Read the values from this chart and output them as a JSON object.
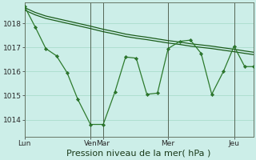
{
  "background_color": "#cceee8",
  "grid_color": "#aaddcc",
  "line_color_dark": "#1a5c1a",
  "line_color_med": "#2d7a2d",
  "xlabel": "Pression niveau de la mer( hPa )",
  "xlabel_fontsize": 8,
  "ylim": [
    1013.3,
    1018.85
  ],
  "yticks": [
    1014,
    1015,
    1016,
    1017,
    1018
  ],
  "tick_fontsize": 6.5,
  "day_labels": [
    "Lun",
    "Ven",
    "Mar",
    "Mer",
    "Jeu"
  ],
  "day_x": [
    0.0,
    0.62,
    0.74,
    1.35,
    1.97
  ],
  "vline_x": [
    0.0,
    0.62,
    0.74,
    1.35,
    1.97
  ],
  "xlim": [
    0.0,
    2.15
  ],
  "trend1_x": [
    0.0,
    0.1,
    0.2,
    0.3,
    0.4,
    0.5,
    0.62,
    0.74,
    0.85,
    0.95,
    1.05,
    1.15,
    1.25,
    1.35,
    1.46,
    1.56,
    1.66,
    1.76,
    1.87,
    1.97,
    2.07,
    2.15
  ],
  "trend1_y": [
    1018.55,
    1018.35,
    1018.2,
    1018.1,
    1018.0,
    1017.9,
    1017.78,
    1017.65,
    1017.55,
    1017.45,
    1017.38,
    1017.32,
    1017.25,
    1017.18,
    1017.12,
    1017.05,
    1017.0,
    1016.95,
    1016.88,
    1016.82,
    1016.75,
    1016.7
  ],
  "trend2_x": [
    0.0,
    0.1,
    0.2,
    0.3,
    0.4,
    0.5,
    0.62,
    0.74,
    0.85,
    0.95,
    1.05,
    1.15,
    1.25,
    1.35,
    1.46,
    1.56,
    1.66,
    1.76,
    1.87,
    1.97,
    2.07,
    2.15
  ],
  "trend2_y": [
    1018.65,
    1018.45,
    1018.3,
    1018.2,
    1018.1,
    1018.0,
    1017.88,
    1017.75,
    1017.65,
    1017.55,
    1017.48,
    1017.42,
    1017.35,
    1017.28,
    1017.22,
    1017.15,
    1017.1,
    1017.05,
    1016.98,
    1016.92,
    1016.85,
    1016.8
  ],
  "main_x": [
    0.0,
    0.1,
    0.2,
    0.3,
    0.4,
    0.5,
    0.62,
    0.74,
    0.85,
    0.95,
    1.05,
    1.15,
    1.25,
    1.35,
    1.46,
    1.56,
    1.66,
    1.76,
    1.87,
    1.97,
    2.07,
    2.15
  ],
  "main_y": [
    1018.7,
    1017.85,
    1016.95,
    1016.65,
    1015.95,
    1014.85,
    1013.8,
    1013.8,
    1015.15,
    1016.6,
    1016.55,
    1015.05,
    1015.1,
    1016.95,
    1017.25,
    1017.3,
    1016.75,
    1015.05,
    1016.0,
    1017.05,
    1016.2,
    1016.2
  ]
}
